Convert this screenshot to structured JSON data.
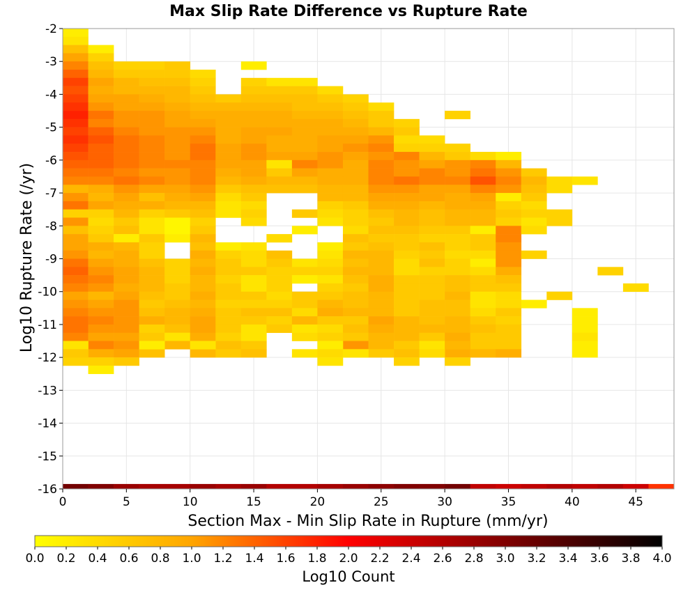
{
  "chart_data": {
    "type": "heatmap",
    "title": "Max Slip Rate Difference vs Rupture Rate",
    "xlabel": "Section Max - Min Slip Rate in Rupture (mm/yr)",
    "ylabel": "Log10 Rupture Rate (/yr)",
    "xlim": [
      0,
      48
    ],
    "ylim": [
      -16,
      -2
    ],
    "x_ticks": [
      "0",
      "5",
      "10",
      "15",
      "20",
      "25",
      "30",
      "35",
      "40",
      "45"
    ],
    "y_ticks": [
      "-2",
      "-3",
      "-4",
      "-5",
      "-6",
      "-7",
      "-8",
      "-9",
      "-10",
      "-11",
      "-12",
      "-13",
      "-14",
      "-15",
      "-16"
    ],
    "bin_width_x": 2,
    "bin_height_y": 0.25,
    "x_bin_starts": [
      0,
      2,
      4,
      6,
      8,
      10,
      12,
      14,
      16,
      18,
      20,
      22,
      24,
      26,
      28,
      30,
      32,
      34,
      36,
      38,
      40,
      42,
      44,
      46
    ],
    "y_bin_tops": [
      -2.0,
      -2.25,
      -2.5,
      -2.75,
      -3.0,
      -3.25,
      -3.5,
      -3.75,
      -4.0,
      -4.25,
      -4.5,
      -4.75,
      -5.0,
      -5.25,
      -5.5,
      -5.75,
      -6.0,
      -6.25,
      -6.5,
      -6.75,
      -7.0,
      -7.25,
      -7.5,
      -7.75,
      -8.0,
      -8.25,
      -8.5,
      -8.75,
      -9.0,
      -9.25,
      -9.5,
      -9.75,
      -10.0,
      -10.25,
      -10.5,
      -10.75,
      -11.0,
      -11.25,
      -11.5,
      -11.75,
      -12.0,
      -12.25
    ],
    "z_rows_comment_free": true,
    "z_log10_count": [
      [
        0.2,
        null,
        null,
        null,
        null,
        null,
        null,
        null,
        null,
        null,
        null,
        null,
        null,
        null,
        null,
        null,
        null,
        null,
        null,
        null,
        null,
        null,
        null,
        null
      ],
      [
        0.3,
        null,
        null,
        null,
        null,
        null,
        null,
        null,
        null,
        null,
        null,
        null,
        null,
        null,
        null,
        null,
        null,
        null,
        null,
        null,
        null,
        null,
        null,
        null
      ],
      [
        0.7,
        0.2,
        null,
        null,
        null,
        null,
        null,
        null,
        null,
        null,
        null,
        null,
        null,
        null,
        null,
        null,
        null,
        null,
        null,
        null,
        null,
        null,
        null,
        null
      ],
      [
        1.0,
        0.5,
        null,
        null,
        null,
        null,
        null,
        null,
        null,
        null,
        null,
        null,
        null,
        null,
        null,
        null,
        null,
        null,
        null,
        null,
        null,
        null,
        null,
        null
      ],
      [
        1.2,
        0.7,
        0.5,
        0.5,
        0.6,
        null,
        null,
        0.2,
        null,
        null,
        null,
        null,
        null,
        null,
        null,
        null,
        null,
        null,
        null,
        null,
        null,
        null,
        null,
        null
      ],
      [
        1.4,
        0.8,
        0.6,
        0.6,
        0.6,
        0.4,
        null,
        null,
        null,
        null,
        null,
        null,
        null,
        null,
        null,
        null,
        null,
        null,
        null,
        null,
        null,
        null,
        null,
        null
      ],
      [
        1.6,
        1.0,
        0.8,
        0.7,
        0.7,
        0.5,
        null,
        0.5,
        0.3,
        0.3,
        null,
        null,
        null,
        null,
        null,
        null,
        null,
        null,
        null,
        null,
        null,
        null,
        null,
        null
      ],
      [
        1.5,
        0.9,
        0.8,
        0.8,
        0.8,
        0.6,
        null,
        0.6,
        0.6,
        0.6,
        0.4,
        null,
        null,
        null,
        null,
        null,
        null,
        null,
        null,
        null,
        null,
        null,
        null,
        null
      ],
      [
        1.6,
        1.0,
        1.0,
        0.9,
        0.8,
        0.7,
        0.6,
        0.7,
        0.7,
        0.7,
        0.6,
        0.5,
        null,
        null,
        null,
        null,
        null,
        null,
        null,
        null,
        null,
        null,
        null,
        null
      ],
      [
        1.7,
        1.1,
        1.0,
        1.0,
        0.9,
        0.8,
        0.8,
        0.8,
        0.8,
        0.7,
        0.7,
        0.6,
        0.4,
        null,
        null,
        null,
        null,
        null,
        null,
        null,
        null,
        null,
        null,
        null
      ],
      [
        1.8,
        1.3,
        1.1,
        1.1,
        1.0,
        0.9,
        0.9,
        0.9,
        0.9,
        0.8,
        0.8,
        0.7,
        0.6,
        null,
        null,
        0.5,
        null,
        null,
        null,
        null,
        null,
        null,
        null,
        null
      ],
      [
        1.7,
        1.2,
        1.1,
        1.1,
        1.0,
        1.0,
        0.9,
        0.9,
        0.9,
        0.9,
        0.9,
        0.8,
        0.6,
        0.5,
        null,
        null,
        null,
        null,
        null,
        null,
        null,
        null,
        null,
        null
      ],
      [
        1.6,
        1.4,
        1.2,
        1.1,
        1.1,
        1.1,
        0.9,
        1.0,
        1.0,
        0.9,
        0.9,
        0.9,
        0.8,
        0.6,
        null,
        null,
        null,
        null,
        null,
        null,
        null,
        null,
        null,
        null
      ],
      [
        1.7,
        1.5,
        1.3,
        1.2,
        1.1,
        1.2,
        0.9,
        1.0,
        0.9,
        0.9,
        1.0,
        1.0,
        1.1,
        0.4,
        0.4,
        null,
        null,
        null,
        null,
        null,
        null,
        null,
        null,
        null
      ],
      [
        1.6,
        1.4,
        1.3,
        1.2,
        1.1,
        1.3,
        1.0,
        1.1,
        0.9,
        0.9,
        1.0,
        1.1,
        1.2,
        0.5,
        0.5,
        0.5,
        null,
        null,
        null,
        null,
        null,
        null,
        null,
        null
      ],
      [
        1.5,
        1.4,
        1.3,
        1.2,
        1.1,
        1.3,
        1.0,
        1.1,
        1.0,
        1.0,
        1.1,
        1.0,
        1.1,
        1.2,
        0.8,
        0.6,
        0.4,
        0.2,
        null,
        null,
        null,
        null,
        null,
        null
      ],
      [
        1.4,
        1.4,
        1.3,
        1.2,
        1.2,
        1.2,
        1.0,
        1.0,
        0.3,
        1.2,
        1.1,
        0.9,
        1.2,
        1.1,
        1.0,
        1.1,
        1.2,
        0.8,
        null,
        null,
        null,
        null,
        null,
        null
      ],
      [
        1.3,
        1.3,
        1.2,
        1.1,
        1.1,
        1.2,
        0.9,
        1.0,
        0.6,
        1.0,
        0.9,
        0.9,
        1.2,
        1.1,
        1.2,
        1.1,
        1.3,
        1.1,
        0.6,
        null,
        null,
        null,
        null,
        null
      ],
      [
        1.2,
        1.2,
        1.3,
        1.2,
        1.1,
        1.2,
        0.8,
        0.9,
        0.8,
        0.8,
        0.9,
        0.9,
        1.2,
        1.3,
        1.2,
        1.2,
        1.5,
        1.2,
        0.8,
        0.4,
        0.3,
        null,
        null,
        null
      ],
      [
        0.8,
        0.9,
        1.1,
        1.0,
        1.0,
        1.1,
        0.6,
        0.7,
        0.7,
        0.7,
        0.8,
        0.8,
        1.1,
        1.1,
        1.0,
        1.0,
        1.2,
        1.1,
        0.7,
        0.4,
        null,
        null,
        null,
        null
      ],
      [
        1.1,
        0.8,
        1.0,
        0.7,
        0.9,
        1.0,
        0.4,
        0.6,
        null,
        null,
        0.8,
        0.8,
        1.0,
        1.0,
        1.0,
        0.9,
        1.0,
        0.2,
        0.6,
        null,
        null,
        null,
        null,
        null
      ],
      [
        1.3,
        1.0,
        0.9,
        0.9,
        0.8,
        0.8,
        0.3,
        0.4,
        null,
        null,
        0.5,
        0.6,
        0.9,
        0.9,
        0.8,
        0.9,
        0.9,
        0.5,
        0.4,
        null,
        null,
        null,
        null,
        null
      ],
      [
        0.5,
        0.5,
        0.8,
        0.5,
        0.6,
        0.7,
        0.3,
        0.5,
        null,
        0.6,
        0.4,
        0.5,
        0.7,
        0.8,
        0.7,
        0.8,
        0.8,
        0.6,
        0.5,
        0.5,
        null,
        null,
        null,
        null
      ],
      [
        1.1,
        0.4,
        0.6,
        0.3,
        0.1,
        0.5,
        null,
        0.4,
        null,
        null,
        0.3,
        0.5,
        0.6,
        0.8,
        0.7,
        0.8,
        0.8,
        0.5,
        0.3,
        0.5,
        null,
        null,
        null,
        null
      ],
      [
        0.7,
        0.5,
        0.7,
        0.3,
        0.1,
        0.6,
        null,
        null,
        null,
        0.2,
        null,
        0.4,
        0.7,
        0.7,
        0.6,
        0.6,
        0.2,
        1.2,
        0.4,
        null,
        null,
        null,
        null,
        null
      ],
      [
        1.0,
        0.6,
        0.2,
        0.6,
        0.2,
        0.8,
        null,
        null,
        0.4,
        null,
        null,
        0.7,
        0.6,
        0.6,
        0.5,
        0.5,
        0.6,
        1.2,
        null,
        null,
        null,
        null,
        null,
        null
      ],
      [
        1.0,
        0.9,
        0.8,
        0.5,
        null,
        0.7,
        0.2,
        0.3,
        null,
        null,
        0.2,
        0.6,
        0.7,
        0.6,
        0.7,
        0.5,
        0.6,
        1.1,
        null,
        null,
        null,
        null,
        null,
        null
      ],
      [
        1.1,
        0.8,
        0.9,
        0.5,
        null,
        0.9,
        0.5,
        0.4,
        0.7,
        null,
        0.3,
        0.8,
        0.8,
        0.5,
        0.6,
        0.4,
        0.4,
        1.1,
        null,
        null,
        null,
        null,
        null,
        null
      ],
      [
        1.3,
        1.0,
        0.9,
        0.7,
        0.5,
        0.8,
        0.6,
        0.4,
        0.6,
        0.3,
        0.4,
        0.7,
        0.8,
        0.4,
        0.7,
        0.5,
        0.2,
        1.1,
        null,
        null,
        null,
        null,
        null,
        null
      ],
      [
        1.4,
        1.1,
        1.0,
        0.8,
        0.5,
        0.9,
        0.6,
        0.6,
        0.5,
        0.5,
        0.5,
        0.8,
        0.8,
        0.4,
        0.5,
        0.5,
        0.4,
        0.9,
        null,
        null,
        null,
        0.5,
        null,
        null
      ],
      [
        1.3,
        1.2,
        1.0,
        0.8,
        0.5,
        0.8,
        0.5,
        0.3,
        0.5,
        0.2,
        0.3,
        0.7,
        0.9,
        0.6,
        0.6,
        0.7,
        0.6,
        0.7,
        null,
        null,
        null,
        null,
        null,
        null
      ],
      [
        1.2,
        1.1,
        0.9,
        0.8,
        0.6,
        0.8,
        0.6,
        0.3,
        0.5,
        null,
        0.5,
        0.6,
        0.9,
        0.6,
        0.6,
        0.7,
        0.6,
        0.6,
        null,
        null,
        null,
        null,
        0.4,
        null
      ],
      [
        1.0,
        0.8,
        1.0,
        0.7,
        0.6,
        0.9,
        0.6,
        0.6,
        0.4,
        0.6,
        0.6,
        0.7,
        0.8,
        0.6,
        0.6,
        0.8,
        0.3,
        0.4,
        null,
        0.5,
        null,
        null,
        null,
        null
      ],
      [
        1.1,
        1.0,
        1.1,
        0.6,
        0.7,
        0.8,
        0.5,
        0.5,
        0.5,
        0.6,
        0.8,
        0.7,
        0.8,
        0.6,
        0.7,
        0.7,
        0.3,
        0.4,
        0.2,
        null,
        null,
        null,
        null,
        null
      ],
      [
        1.2,
        1.1,
        1.1,
        0.7,
        0.8,
        0.9,
        0.6,
        0.7,
        0.7,
        0.4,
        0.9,
        0.8,
        0.8,
        0.6,
        0.7,
        0.7,
        0.4,
        0.6,
        null,
        null,
        0.2,
        null,
        null,
        null
      ],
      [
        1.3,
        1.2,
        1.1,
        0.9,
        0.8,
        1.0,
        0.6,
        0.6,
        0.5,
        0.8,
        0.6,
        0.6,
        1.0,
        0.8,
        0.7,
        0.8,
        0.6,
        0.5,
        null,
        null,
        0.2,
        null,
        null,
        null
      ],
      [
        1.3,
        1.1,
        1.1,
        0.5,
        0.7,
        1.0,
        0.6,
        0.3,
        0.6,
        0.3,
        0.4,
        0.7,
        0.9,
        0.8,
        0.8,
        0.8,
        0.7,
        0.6,
        null,
        null,
        0.2,
        null,
        null,
        null
      ],
      [
        1.2,
        1.0,
        1.0,
        0.6,
        0.3,
        0.9,
        0.5,
        0.3,
        null,
        0.4,
        0.5,
        0.6,
        0.8,
        0.8,
        0.6,
        0.9,
        0.6,
        0.6,
        null,
        null,
        0.3,
        null,
        null,
        null
      ],
      [
        1.3,
        1.2,
        1.1,
        null,
        0.8,
        null,
        0.7,
        0.6,
        null,
        null,
        null,
        1.1,
        0.8,
        0.6,
        0.7,
        0.8,
        0.6,
        0.6,
        null,
        null,
        0.2,
        null,
        null,
        null
      ],
      [
        1.1,
        0.9,
        1.0,
        0.7,
        null,
        0.8,
        0.6,
        0.7,
        null,
        null,
        null,
        0.8,
        0.6,
        0.7,
        0.6,
        0.9,
        0.8,
        0.9,
        null,
        null,
        0.2,
        null,
        null,
        null
      ],
      [
        0.5,
        0.5,
        0.6,
        null,
        null,
        null,
        null,
        null,
        null,
        null,
        null,
        null,
        null,
        null,
        null,
        null,
        null,
        null,
        null,
        null,
        null,
        null,
        null,
        null
      ]
    ],
    "extra_cells": [
      {
        "x": 0,
        "y_top": -11.5,
        "v": 0.3
      },
      {
        "x": 0,
        "y_top": -11.75,
        "v": 0.6
      },
      {
        "x": 6,
        "y_top": -11.5,
        "v": 0.2
      },
      {
        "x": 10,
        "y_top": -11.5,
        "v": 0.3
      },
      {
        "x": 18,
        "y_top": -11.75,
        "v": 0.3
      },
      {
        "x": 20,
        "y_top": -11.5,
        "v": 0.2
      },
      {
        "x": 20,
        "y_top": -11.75,
        "v": 0.4
      },
      {
        "x": 22,
        "y_top": -11.75,
        "v": 0.3
      },
      {
        "x": 28,
        "y_top": -11.5,
        "v": 0.3
      },
      {
        "x": 30,
        "y_top": -11.5,
        "v": 0.8
      },
      {
        "x": 28,
        "y_top": -11.75,
        "v": 0.4
      },
      {
        "x": 20,
        "y_top": -12.0,
        "v": 0.3
      },
      {
        "x": 26,
        "y_top": -12.0,
        "v": 0.5
      },
      {
        "x": 30,
        "y_top": -12.0,
        "v": 0.5
      },
      {
        "x": 2,
        "y_top": -12.25,
        "v": 0.2
      },
      {
        "x": 36,
        "y_top": -8.75,
        "v": 0.5
      }
    ],
    "bottom_row": {
      "y_top": -15.85,
      "values": [
        3.1,
        3.0,
        2.8,
        2.7,
        2.7,
        2.8,
        2.7,
        2.8,
        2.6,
        2.6,
        2.7,
        2.8,
        2.9,
        3.0,
        3.0,
        3.1,
        2.5,
        2.4,
        2.5,
        2.6,
        2.5,
        2.6,
        2.4,
        1.7
      ]
    },
    "colorbar": {
      "label": "Log10 Count",
      "min": 0.0,
      "max": 4.0,
      "ticks": [
        "0.0",
        "0.2",
        "0.4",
        "0.6",
        "0.8",
        "1.0",
        "1.2",
        "1.4",
        "1.6",
        "1.8",
        "2.0",
        "2.2",
        "2.4",
        "2.6",
        "2.8",
        "3.0",
        "3.2",
        "3.4",
        "3.6",
        "3.8",
        "4.0"
      ],
      "colors": [
        "#ffff00",
        "#ffa500",
        "#ff0000",
        "#800000",
        "#000000"
      ]
    }
  }
}
